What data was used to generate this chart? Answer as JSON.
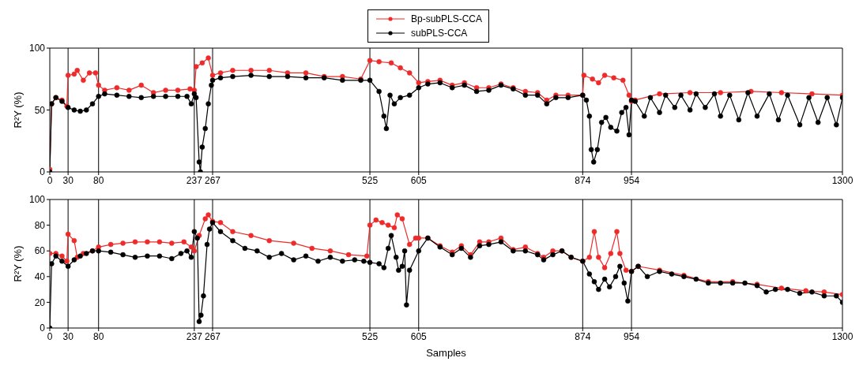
{
  "chart_data": [
    {
      "type": "line",
      "ylabel": "R²Y (%)",
      "xlim": [
        0,
        1300
      ],
      "xticks": [
        0,
        30,
        80,
        237,
        267,
        525,
        605,
        874,
        954,
        1300
      ],
      "ylim": [
        0,
        100
      ],
      "yticks": [
        0,
        50,
        100
      ],
      "legend": "top",
      "marker": "circle",
      "line_style": "solid",
      "ref_lines": [
        {
          "axis": "x",
          "value": 30,
          "color": "#000000"
        },
        {
          "axis": "x",
          "value": 80,
          "color": "#000000"
        },
        {
          "axis": "x",
          "value": 237,
          "color": "#000000"
        },
        {
          "axis": "x",
          "value": 267,
          "color": "#000000"
        },
        {
          "axis": "x",
          "value": 525,
          "color": "#000000"
        },
        {
          "axis": "x",
          "value": 605,
          "color": "#000000"
        },
        {
          "axis": "x",
          "value": 874,
          "color": "#000000"
        },
        {
          "axis": "x",
          "value": 954,
          "color": "#000000"
        }
      ],
      "series": [
        {
          "name": "Bp-subPLS-CCA",
          "color": "#ee2a2a",
          "x": [
            0,
            3,
            10,
            20,
            28,
            30,
            40,
            45,
            55,
            65,
            75,
            80,
            90,
            110,
            130,
            150,
            170,
            190,
            210,
            230,
            237,
            240,
            250,
            260,
            267,
            280,
            300,
            330,
            360,
            390,
            420,
            450,
            480,
            510,
            525,
            540,
            560,
            575,
            590,
            605,
            620,
            640,
            660,
            680,
            700,
            720,
            740,
            760,
            780,
            800,
            815,
            830,
            850,
            874,
            876,
            890,
            900,
            910,
            925,
            940,
            950,
            954,
            960,
            1000,
            1050,
            1100,
            1150,
            1200,
            1250,
            1300
          ],
          "values": [
            2,
            55,
            60,
            58,
            53,
            78,
            79,
            82,
            74,
            80,
            80,
            70,
            66,
            68,
            66,
            70,
            64,
            66,
            66,
            67,
            66,
            85,
            88,
            92,
            78,
            80,
            82,
            82,
            82,
            80,
            80,
            77,
            77,
            75,
            90,
            89,
            88,
            84,
            80,
            72,
            73,
            74,
            70,
            72,
            68,
            68,
            71,
            68,
            65,
            64,
            58,
            62,
            62,
            62,
            78,
            75,
            72,
            78,
            76,
            74,
            62,
            57,
            58,
            63,
            64,
            64,
            65,
            64,
            63,
            62
          ]
        },
        {
          "name": "subPLS-CCA",
          "color": "#000000",
          "x": [
            0,
            3,
            10,
            20,
            30,
            40,
            50,
            60,
            70,
            80,
            90,
            110,
            130,
            150,
            170,
            190,
            210,
            225,
            232,
            237,
            240,
            245,
            247,
            250,
            255,
            260,
            265,
            267,
            280,
            300,
            330,
            360,
            390,
            420,
            450,
            480,
            510,
            525,
            540,
            548,
            552,
            558,
            565,
            575,
            590,
            605,
            620,
            640,
            660,
            680,
            700,
            720,
            740,
            760,
            780,
            800,
            815,
            830,
            850,
            874,
            880,
            885,
            888,
            892,
            898,
            905,
            912,
            920,
            930,
            938,
            945,
            950,
            954,
            960,
            975,
            985,
            1000,
            1010,
            1025,
            1035,
            1050,
            1060,
            1075,
            1090,
            1100,
            1115,
            1130,
            1145,
            1160,
            1180,
            1195,
            1210,
            1230,
            1245,
            1260,
            1275,
            1290,
            1300
          ],
          "values": [
            0,
            55,
            60,
            57,
            52,
            50,
            49,
            50,
            55,
            61,
            63,
            62,
            61,
            60,
            61,
            61,
            61,
            61,
            55,
            63,
            60,
            8,
            0,
            20,
            35,
            55,
            70,
            74,
            76,
            77,
            78,
            77,
            77,
            76,
            76,
            74,
            74,
            74,
            65,
            45,
            35,
            62,
            55,
            60,
            62,
            68,
            71,
            72,
            68,
            70,
            65,
            66,
            70,
            67,
            62,
            62,
            55,
            60,
            60,
            62,
            58,
            45,
            18,
            8,
            18,
            40,
            44,
            36,
            33,
            48,
            52,
            30,
            58,
            57,
            45,
            60,
            48,
            62,
            52,
            62,
            50,
            63,
            52,
            63,
            45,
            62,
            42,
            64,
            45,
            63,
            42,
            62,
            38,
            60,
            40,
            60,
            38,
            60
          ]
        }
      ]
    },
    {
      "type": "line",
      "xlabel": "Samples",
      "ylabel": "R²Y (%)",
      "xlim": [
        0,
        1300
      ],
      "xticks": [
        0,
        30,
        80,
        237,
        267,
        525,
        605,
        874,
        954,
        1300
      ],
      "ylim": [
        0,
        100
      ],
      "yticks": [
        0,
        20,
        40,
        60,
        80,
        100
      ],
      "marker": "circle",
      "line_style": "solid",
      "ref_lines": [
        {
          "axis": "x",
          "value": 30,
          "color": "#000000"
        },
        {
          "axis": "x",
          "value": 80,
          "color": "#000000"
        },
        {
          "axis": "x",
          "value": 237,
          "color": "#000000"
        },
        {
          "axis": "x",
          "value": 267,
          "color": "#000000"
        },
        {
          "axis": "x",
          "value": 525,
          "color": "#000000"
        },
        {
          "axis": "x",
          "value": 605,
          "color": "#000000"
        },
        {
          "axis": "x",
          "value": 874,
          "color": "#000000"
        },
        {
          "axis": "x",
          "value": 954,
          "color": "#000000"
        }
      ],
      "series": [
        {
          "color": "#ee2a2a",
          "x": [
            0,
            10,
            20,
            28,
            30,
            40,
            45,
            55,
            70,
            80,
            100,
            120,
            140,
            160,
            180,
            200,
            220,
            232,
            237,
            245,
            255,
            260,
            267,
            280,
            300,
            330,
            360,
            400,
            430,
            460,
            490,
            520,
            525,
            535,
            545,
            555,
            565,
            570,
            578,
            590,
            600,
            605,
            620,
            640,
            660,
            675,
            690,
            705,
            720,
            740,
            760,
            780,
            800,
            810,
            825,
            840,
            855,
            874,
            885,
            893,
            900,
            910,
            920,
            930,
            935,
            945,
            954,
            965,
            1000,
            1040,
            1080,
            1120,
            1160,
            1200,
            1240,
            1270,
            1300
          ],
          "values": [
            58,
            58,
            56,
            52,
            73,
            68,
            55,
            58,
            60,
            63,
            65,
            66,
            67,
            67,
            67,
            66,
            67,
            63,
            60,
            72,
            85,
            88,
            83,
            82,
            75,
            72,
            68,
            66,
            62,
            60,
            57,
            56,
            80,
            84,
            82,
            80,
            78,
            88,
            85,
            65,
            70,
            70,
            70,
            64,
            59,
            64,
            57,
            67,
            67,
            70,
            61,
            63,
            58,
            55,
            60,
            60,
            55,
            52,
            55,
            75,
            55,
            47,
            58,
            75,
            58,
            45,
            44,
            48,
            45,
            41,
            36,
            36,
            34,
            31,
            29,
            28,
            26
          ]
        },
        {
          "color": "#000000",
          "x": [
            0,
            3,
            10,
            20,
            30,
            40,
            50,
            60,
            70,
            80,
            100,
            120,
            140,
            160,
            180,
            200,
            215,
            225,
            232,
            237,
            242,
            245,
            248,
            252,
            258,
            262,
            267,
            280,
            300,
            320,
            340,
            360,
            380,
            400,
            420,
            440,
            460,
            480,
            500,
            515,
            525,
            540,
            548,
            555,
            560,
            568,
            572,
            578,
            582,
            585,
            590,
            605,
            620,
            640,
            660,
            675,
            690,
            705,
            720,
            740,
            760,
            780,
            800,
            810,
            825,
            840,
            855,
            874,
            885,
            893,
            900,
            910,
            918,
            928,
            935,
            942,
            948,
            954,
            965,
            980,
            1000,
            1020,
            1040,
            1060,
            1080,
            1100,
            1120,
            1140,
            1160,
            1175,
            1190,
            1210,
            1230,
            1250,
            1270,
            1290,
            1300
          ],
          "values": [
            0,
            50,
            56,
            52,
            48,
            53,
            56,
            58,
            60,
            60,
            59,
            57,
            55,
            56,
            56,
            54,
            58,
            60,
            55,
            75,
            70,
            5,
            10,
            25,
            65,
            77,
            82,
            75,
            68,
            62,
            60,
            55,
            58,
            53,
            56,
            52,
            55,
            52,
            53,
            52,
            51,
            50,
            47,
            62,
            72,
            55,
            45,
            48,
            60,
            18,
            45,
            60,
            70,
            63,
            57,
            62,
            55,
            64,
            65,
            67,
            60,
            60,
            57,
            53,
            57,
            60,
            55,
            52,
            42,
            36,
            30,
            38,
            32,
            40,
            48,
            35,
            21,
            44,
            48,
            40,
            44,
            42,
            40,
            38,
            35,
            35,
            35,
            35,
            33,
            28,
            30,
            30,
            27,
            28,
            25,
            25,
            20
          ]
        }
      ]
    }
  ]
}
